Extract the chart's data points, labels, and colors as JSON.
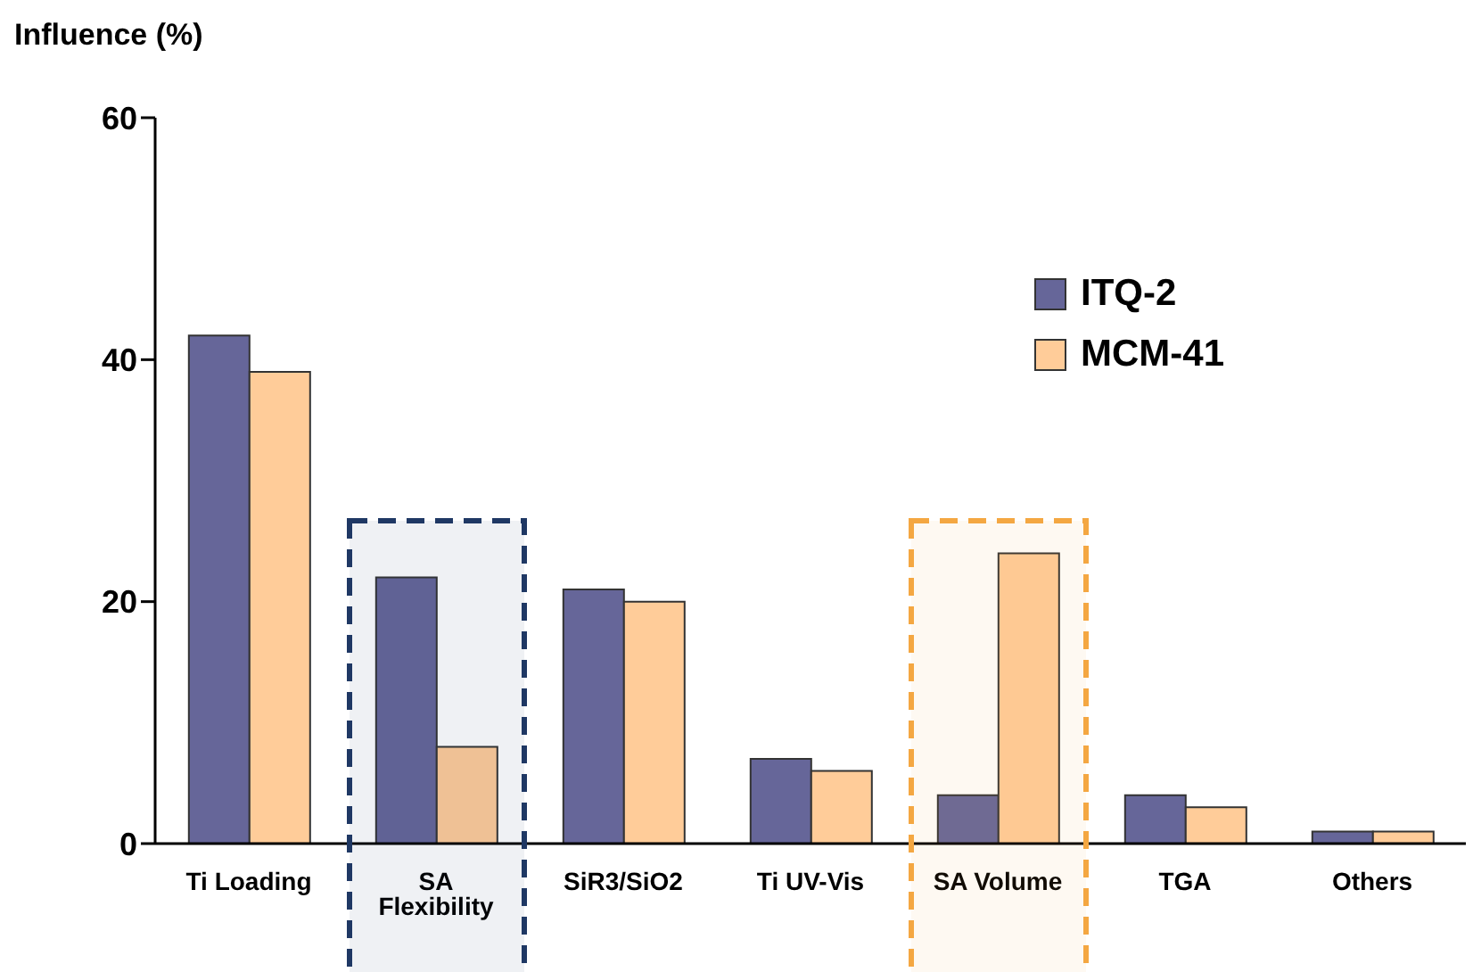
{
  "chart_data": {
    "type": "bar",
    "title": "Influence (%)",
    "categories": [
      "Ti Loading",
      "SA Flexibility",
      "SiR3/SiO2",
      "Ti UV-Vis",
      "SA Volume",
      "TGA",
      "Others"
    ],
    "series": [
      {
        "name": "ITQ-2",
        "color": "#666699",
        "values": [
          42,
          22,
          21,
          7,
          4,
          4,
          1
        ]
      },
      {
        "name": "MCM-41",
        "color": "#ffcc99",
        "values": [
          39,
          8,
          20,
          6,
          24,
          3,
          1
        ]
      }
    ],
    "ylim": [
      0,
      60
    ],
    "yticks": [
      0,
      20,
      40,
      60
    ],
    "grid": false,
    "legend": "top right",
    "bands": [
      {
        "axis": "x",
        "from": "SA Flexibility",
        "to": "SA Flexibility",
        "color": "#1f3864"
      },
      {
        "axis": "x",
        "from": "SA Volume",
        "to": "SA Volume",
        "color": "#f4a742"
      }
    ]
  }
}
